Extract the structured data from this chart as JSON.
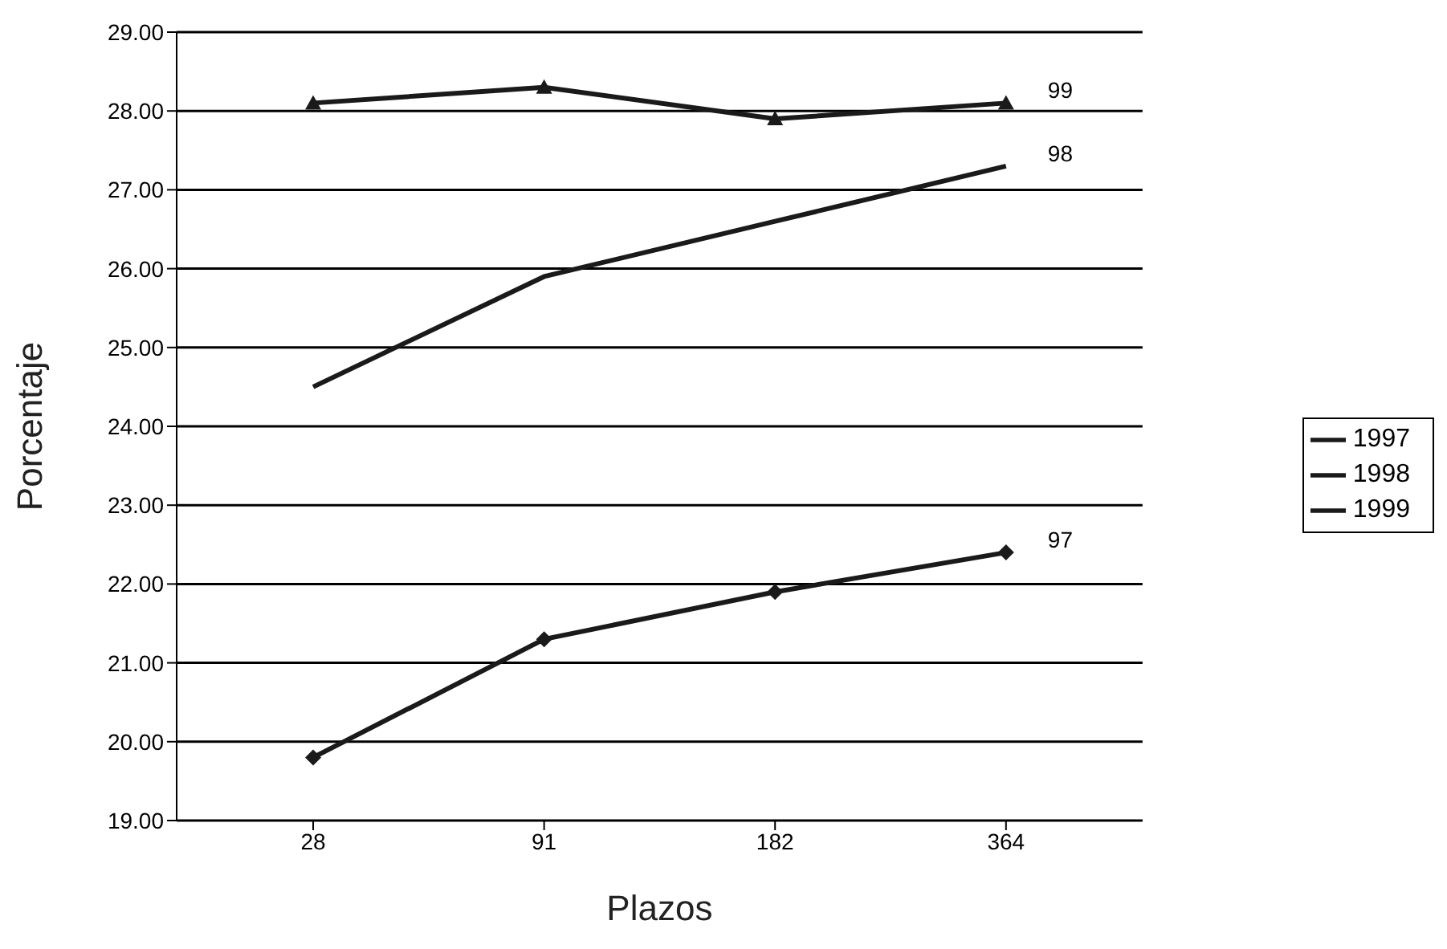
{
  "chart_data": {
    "type": "line",
    "xlabel": "Plazos",
    "ylabel": "Porcentaje",
    "categories": [
      "28",
      "91",
      "182",
      "364"
    ],
    "series": [
      {
        "name": "1997",
        "color": "#1a1a1a",
        "marker": "diamond",
        "values": [
          19.8,
          21.3,
          21.9,
          22.4
        ]
      },
      {
        "name": "1998",
        "color": "#1a1a1a",
        "marker": "none",
        "values": [
          24.5,
          25.9,
          26.6,
          27.3
        ]
      },
      {
        "name": "1999",
        "color": "#1a1a1a",
        "marker": "triangle",
        "values": [
          28.1,
          28.3,
          27.9,
          28.1
        ]
      }
    ],
    "ylim": [
      19,
      29
    ],
    "yticks": [
      {
        "value": 19,
        "label": "19.00"
      },
      {
        "value": 20,
        "label": "20.00"
      },
      {
        "value": 21,
        "label": "21.00"
      },
      {
        "value": 22,
        "label": "22.00"
      },
      {
        "value": 23,
        "label": "23.00"
      },
      {
        "value": 24,
        "label": "24.00"
      },
      {
        "value": 25,
        "label": "25.00"
      },
      {
        "value": 26,
        "label": "26.00"
      },
      {
        "value": 27,
        "label": "27.00"
      },
      {
        "value": 28,
        "label": "28.00"
      },
      {
        "value": 29,
        "label": "29.00"
      }
    ],
    "grid": "y",
    "legend": "right",
    "line_style": "solid",
    "annotations": [
      {
        "text": "97",
        "x": "364",
        "y": 22.4
      },
      {
        "text": "98",
        "x": "364",
        "y": 27.3
      },
      {
        "text": "99",
        "x": "364",
        "y": 28.1
      }
    ]
  }
}
